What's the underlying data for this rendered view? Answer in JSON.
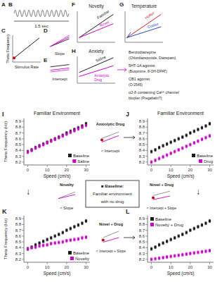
{
  "chart_data": [
    {
      "type": "scatter",
      "title": "Familiar Environment",
      "x_label": "Speed (cm/s)",
      "y_label": "Theta Frequency (Hz)",
      "x": [
        0,
        2,
        4,
        6,
        8,
        10,
        12,
        14,
        16,
        18,
        20,
        22,
        24,
        26,
        28,
        30
      ],
      "series": [
        {
          "name": "Baseline",
          "color": "#1a1a1a",
          "marker": "square",
          "values": [
            8.38,
            8.41,
            8.45,
            8.48,
            8.51,
            8.54,
            8.57,
            8.6,
            8.63,
            8.66,
            8.7,
            8.73,
            8.76,
            8.79,
            8.82,
            8.86
          ],
          "error": 0.025
        },
        {
          "name": "Saline",
          "color": "#cc00cc",
          "marker": "square",
          "values": [
            8.37,
            8.4,
            8.44,
            8.47,
            8.5,
            8.53,
            8.56,
            8.59,
            8.62,
            8.65,
            8.68,
            8.71,
            8.74,
            8.77,
            8.8,
            8.83
          ],
          "error": 0.025
        }
      ],
      "xlim": [
        -2,
        32
      ],
      "ylim": [
        8.15,
        8.95
      ],
      "xticks": [
        0,
        10,
        20,
        30
      ],
      "yticks": [
        8.2,
        8.3,
        8.4,
        8.5,
        8.6,
        8.7,
        8.8,
        8.9
      ],
      "grid": false,
      "legend": "lower right",
      "annotations": [
        "I"
      ]
    },
    {
      "type": "scatter",
      "title": "Familiar Environment",
      "x_label": "Speed (cm/s)",
      "x": [
        0,
        2,
        4,
        6,
        8,
        10,
        12,
        14,
        16,
        18,
        20,
        22,
        24,
        26,
        28,
        30
      ],
      "series": [
        {
          "name": "Baseline",
          "color": "#1a1a1a",
          "marker": "square",
          "values": [
            8.38,
            8.41,
            8.45,
            8.48,
            8.51,
            8.54,
            8.57,
            8.6,
            8.63,
            8.66,
            8.7,
            8.73,
            8.76,
            8.79,
            8.82,
            8.86
          ],
          "error": 0.025
        },
        {
          "name": "Drug",
          "color": "#cc00cc",
          "marker": "square",
          "values": [
            8.2,
            8.23,
            8.26,
            8.29,
            8.32,
            8.35,
            8.38,
            8.41,
            8.44,
            8.47,
            8.5,
            8.53,
            8.56,
            8.59,
            8.62,
            8.65
          ],
          "error": 0.025
        }
      ],
      "xlim": [
        -2,
        32
      ],
      "ylim": [
        8.15,
        8.95
      ],
      "xticks": [
        0,
        10,
        20,
        30
      ],
      "yticks": [
        8.2,
        8.3,
        8.4,
        8.5,
        8.6,
        8.7,
        8.8,
        8.9
      ],
      "grid": false,
      "legend": "lower right",
      "annotations": [
        "J"
      ]
    },
    {
      "type": "scatter",
      "x_label": "Speed (cm/s)",
      "y_label": "Theta Frequency (Hz)",
      "x": [
        0,
        2,
        4,
        6,
        8,
        10,
        12,
        14,
        16,
        18,
        20,
        22,
        24,
        26,
        28,
        30
      ],
      "series": [
        {
          "name": "Baseline",
          "color": "#1a1a1a",
          "marker": "square",
          "values": [
            8.38,
            8.41,
            8.45,
            8.48,
            8.51,
            8.54,
            8.57,
            8.6,
            8.63,
            8.66,
            8.7,
            8.73,
            8.76,
            8.79,
            8.82,
            8.86
          ],
          "error": 0.025
        },
        {
          "name": "Novelty",
          "color": "#cc00cc",
          "marker": "square",
          "values": [
            8.38,
            8.4,
            8.41,
            8.43,
            8.44,
            8.45,
            8.47,
            8.48,
            8.49,
            8.5,
            8.52,
            8.53,
            8.54,
            8.55,
            8.57,
            8.58
          ],
          "error": 0.025
        }
      ],
      "xlim": [
        -2,
        32
      ],
      "ylim": [
        8.15,
        8.95
      ],
      "xticks": [
        0,
        10,
        20,
        30
      ],
      "yticks": [
        8.2,
        8.3,
        8.4,
        8.5,
        8.6,
        8.7,
        8.8,
        8.9
      ],
      "grid": false,
      "legend": "lower right",
      "annotations": [
        "K"
      ]
    },
    {
      "type": "scatter",
      "x_label": "Speed (cm/s)",
      "x": [
        0,
        2,
        4,
        6,
        8,
        10,
        12,
        14,
        16,
        18,
        20,
        22,
        24,
        26,
        28,
        30
      ],
      "series": [
        {
          "name": "Baseline",
          "color": "#1a1a1a",
          "marker": "square",
          "values": [
            8.38,
            8.41,
            8.45,
            8.48,
            8.51,
            8.54,
            8.57,
            8.6,
            8.63,
            8.66,
            8.7,
            8.73,
            8.76,
            8.79,
            8.82,
            8.86
          ],
          "error": 0.025
        },
        {
          "name": "Novelty + Drug",
          "color": "#cc00cc",
          "marker": "square",
          "values": [
            8.2,
            8.21,
            8.22,
            8.23,
            8.24,
            8.25,
            8.26,
            8.27,
            8.28,
            8.29,
            8.3,
            8.31,
            8.32,
            8.33,
            8.34,
            8.35
          ],
          "error": 0.025
        }
      ],
      "xlim": [
        -2,
        32
      ],
      "ylim": [
        8.15,
        8.95
      ],
      "xticks": [
        0,
        10,
        20,
        30
      ],
      "yticks": [
        8.2,
        8.3,
        8.4,
        8.5,
        8.6,
        8.7,
        8.8,
        8.9
      ],
      "grid": false,
      "legend": "upper left",
      "annotations": [
        "L"
      ]
    },
    {
      "type": "diagram",
      "annotations": [
        "A",
        "B",
        "1.5 sec",
        "C",
        "Stimulus Rate",
        "Theta Frequency",
        "D",
        "Slope",
        "E",
        "Intercept",
        "F",
        "Novelty",
        "Familiar",
        "Novel",
        "G",
        "Temperature",
        "Hotter",
        "Cooler",
        "H",
        "Anxiety",
        "Saline",
        "Anxiolytic\nDrug",
        "Benzodiazepine",
        "(Chlordiazepoxide, Diazepam)",
        "5HT-1A agonist",
        "(Buspirone, 8-OH-DPAT)",
        "CB1 agonist",
        "(O-2545)",
        "α2-δ containing Ca²⁺ channel",
        "blocker (Pregabalin?)",
        "Anxiolytic Drug",
        "< Intercept",
        "↓",
        "Novelty",
        "< Slope",
        "■ Baseline:",
        "Familiar environment",
        "with no drug",
        "↓",
        "Novel + Drug",
        "< Intercept + Slope",
        "Novel + Drug",
        "< Intercept + Slope"
      ]
    }
  ]
}
